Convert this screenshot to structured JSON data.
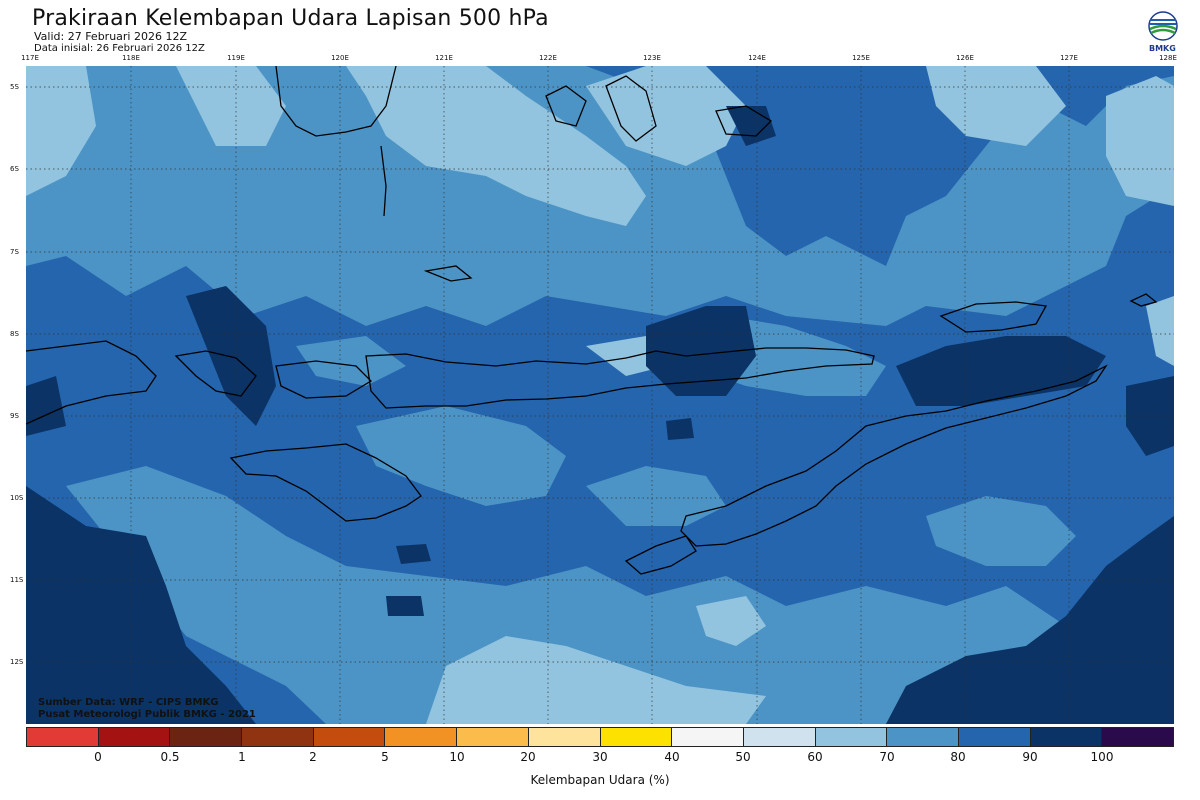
{
  "title": "Prakiraan Kelembapan Udara Lapisan 500 hPa",
  "valid": "Valid: 27 Februari 2026 12Z",
  "init": "Data inisial: 26 Februari 2026 12Z",
  "logo_text": "BMKG",
  "lon_labels": [
    "117E",
    "118E",
    "119E",
    "120E",
    "121E",
    "122E",
    "123E",
    "124E",
    "125E",
    "126E",
    "127E",
    "128E"
  ],
  "lat_labels": [
    "5S",
    "6S",
    "7S",
    "8S",
    "9S",
    "10S",
    "11S",
    "12S"
  ],
  "credits": {
    "source": "Sumber Data: WRF - CIPS BMKG",
    "org": "Pusat Meteorologi Publik BMKG - 2021"
  },
  "colorbar": {
    "title": "Kelembapan Udara (%)",
    "ticks": [
      "0",
      "0.5",
      "1",
      "2",
      "5",
      "10",
      "20",
      "30",
      "40",
      "50",
      "60",
      "70",
      "80",
      "90",
      "100"
    ],
    "colors": [
      "#e23a34",
      "#a51212",
      "#6b2412",
      "#8f3310",
      "#c44c0c",
      "#f29124",
      "#fbbc4c",
      "#fde39b",
      "#fde100",
      "#f5f5f5",
      "#cfe2ee",
      "#93c4df",
      "#4d94c6",
      "#2565ad",
      "#0b3366",
      "#2a0a4a"
    ]
  },
  "map_colors": {
    "c60": "#cfe2ee",
    "c70": "#93c4df",
    "c80": "#4d94c6",
    "c90": "#2565ad",
    "c100": "#0b3366"
  }
}
